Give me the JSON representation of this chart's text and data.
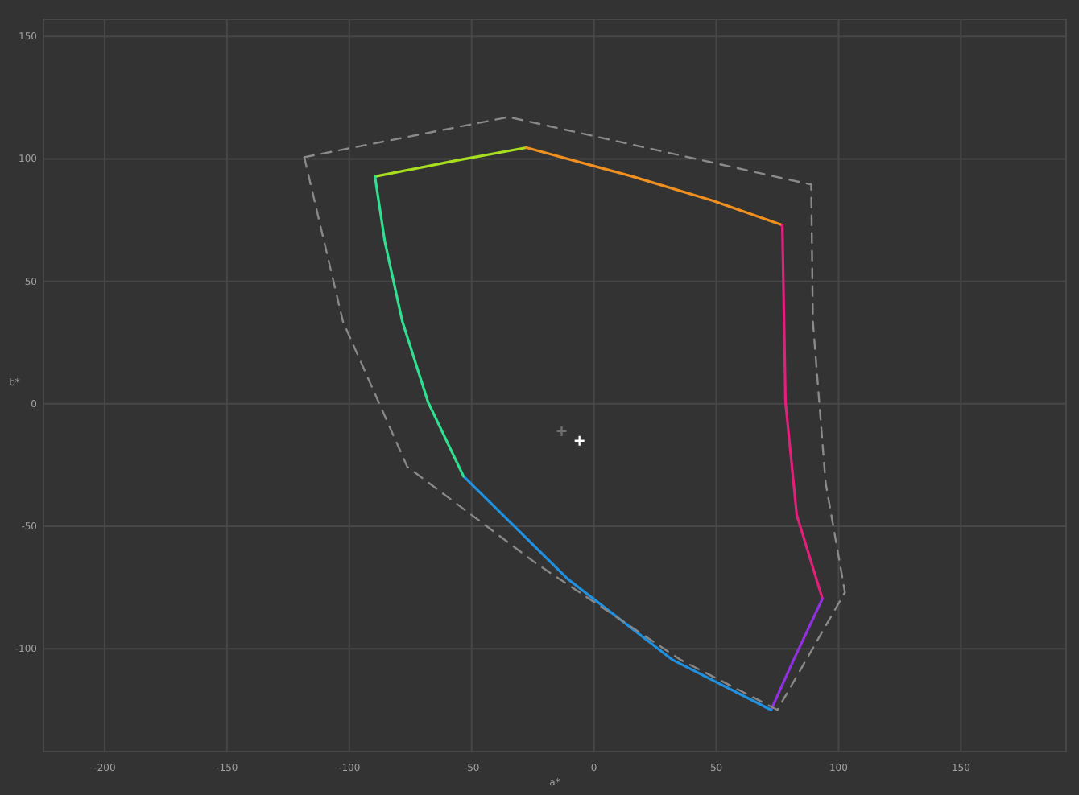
{
  "chart_data": {
    "type": "line",
    "xlabel": "a*",
    "ylabel": "b*",
    "xlim": [
      -225,
      193
    ],
    "ylim": [
      -142,
      157
    ],
    "xticks": [
      -200,
      -150,
      -100,
      -50,
      0,
      50,
      100,
      150
    ],
    "yticks": [
      -100,
      -50,
      0,
      50,
      100,
      150
    ],
    "grid": true,
    "series": [
      {
        "color": "#a8e020",
        "x": [
          -89.5,
          -56.6,
          -27.6
        ],
        "values": [
          92.8,
          99.3,
          104.6
        ]
      },
      {
        "color": "#f09020",
        "x": [
          -27.6,
          15.8,
          48.7,
          77
        ],
        "values": [
          104.6,
          92.8,
          82.9,
          73
        ]
      },
      {
        "color": "#e0207a",
        "x": [
          77,
          78.3,
          82.9,
          93.4
        ],
        "values": [
          73,
          0.7,
          -45.4,
          -79.6
        ]
      },
      {
        "color": "#9030e0",
        "x": [
          93.4,
          81.6,
          72.4
        ],
        "values": [
          -79.6,
          -104.6,
          -125
        ]
      },
      {
        "color": "#2090e0",
        "x": [
          72.4,
          32.2,
          -10.5,
          -53.3
        ],
        "values": [
          -125,
          -104.6,
          -71.7,
          -29.6
        ]
      },
      {
        "color": "#30e090",
        "x": [
          -53.3,
          -67.8,
          -78.3,
          -85.5,
          -89.5
        ],
        "values": [
          -29.6,
          0.7,
          33.6,
          66.4,
          92.8
        ]
      },
      {
        "color": "#8a8a8a",
        "line_style": "dashed",
        "x": [
          -118.4,
          -34.9,
          88.8,
          89.5,
          94.7,
          102.6,
          75
        ],
        "values": [
          100.7,
          117.1,
          89.5,
          33.6,
          -32.2,
          -77,
          -125
        ]
      },
      {
        "color": "#888888",
        "line_style": "dashed",
        "x": [
          75,
          35.5,
          -23.7,
          -76.3,
          -102.6,
          -118.4
        ],
        "values": [
          -125,
          -104.6,
          -65.1,
          -25.7,
          33.6,
          100.7
        ]
      },
      {
        "type": "scatter",
        "marker": "cross",
        "color": "#707070",
        "x": [
          -13.2
        ],
        "values": [
          -11.2
        ]
      },
      {
        "type": "scatter",
        "marker": "cross",
        "color": "#ffffff",
        "x": [
          -5.9
        ],
        "values": [
          -15.1
        ]
      }
    ]
  }
}
